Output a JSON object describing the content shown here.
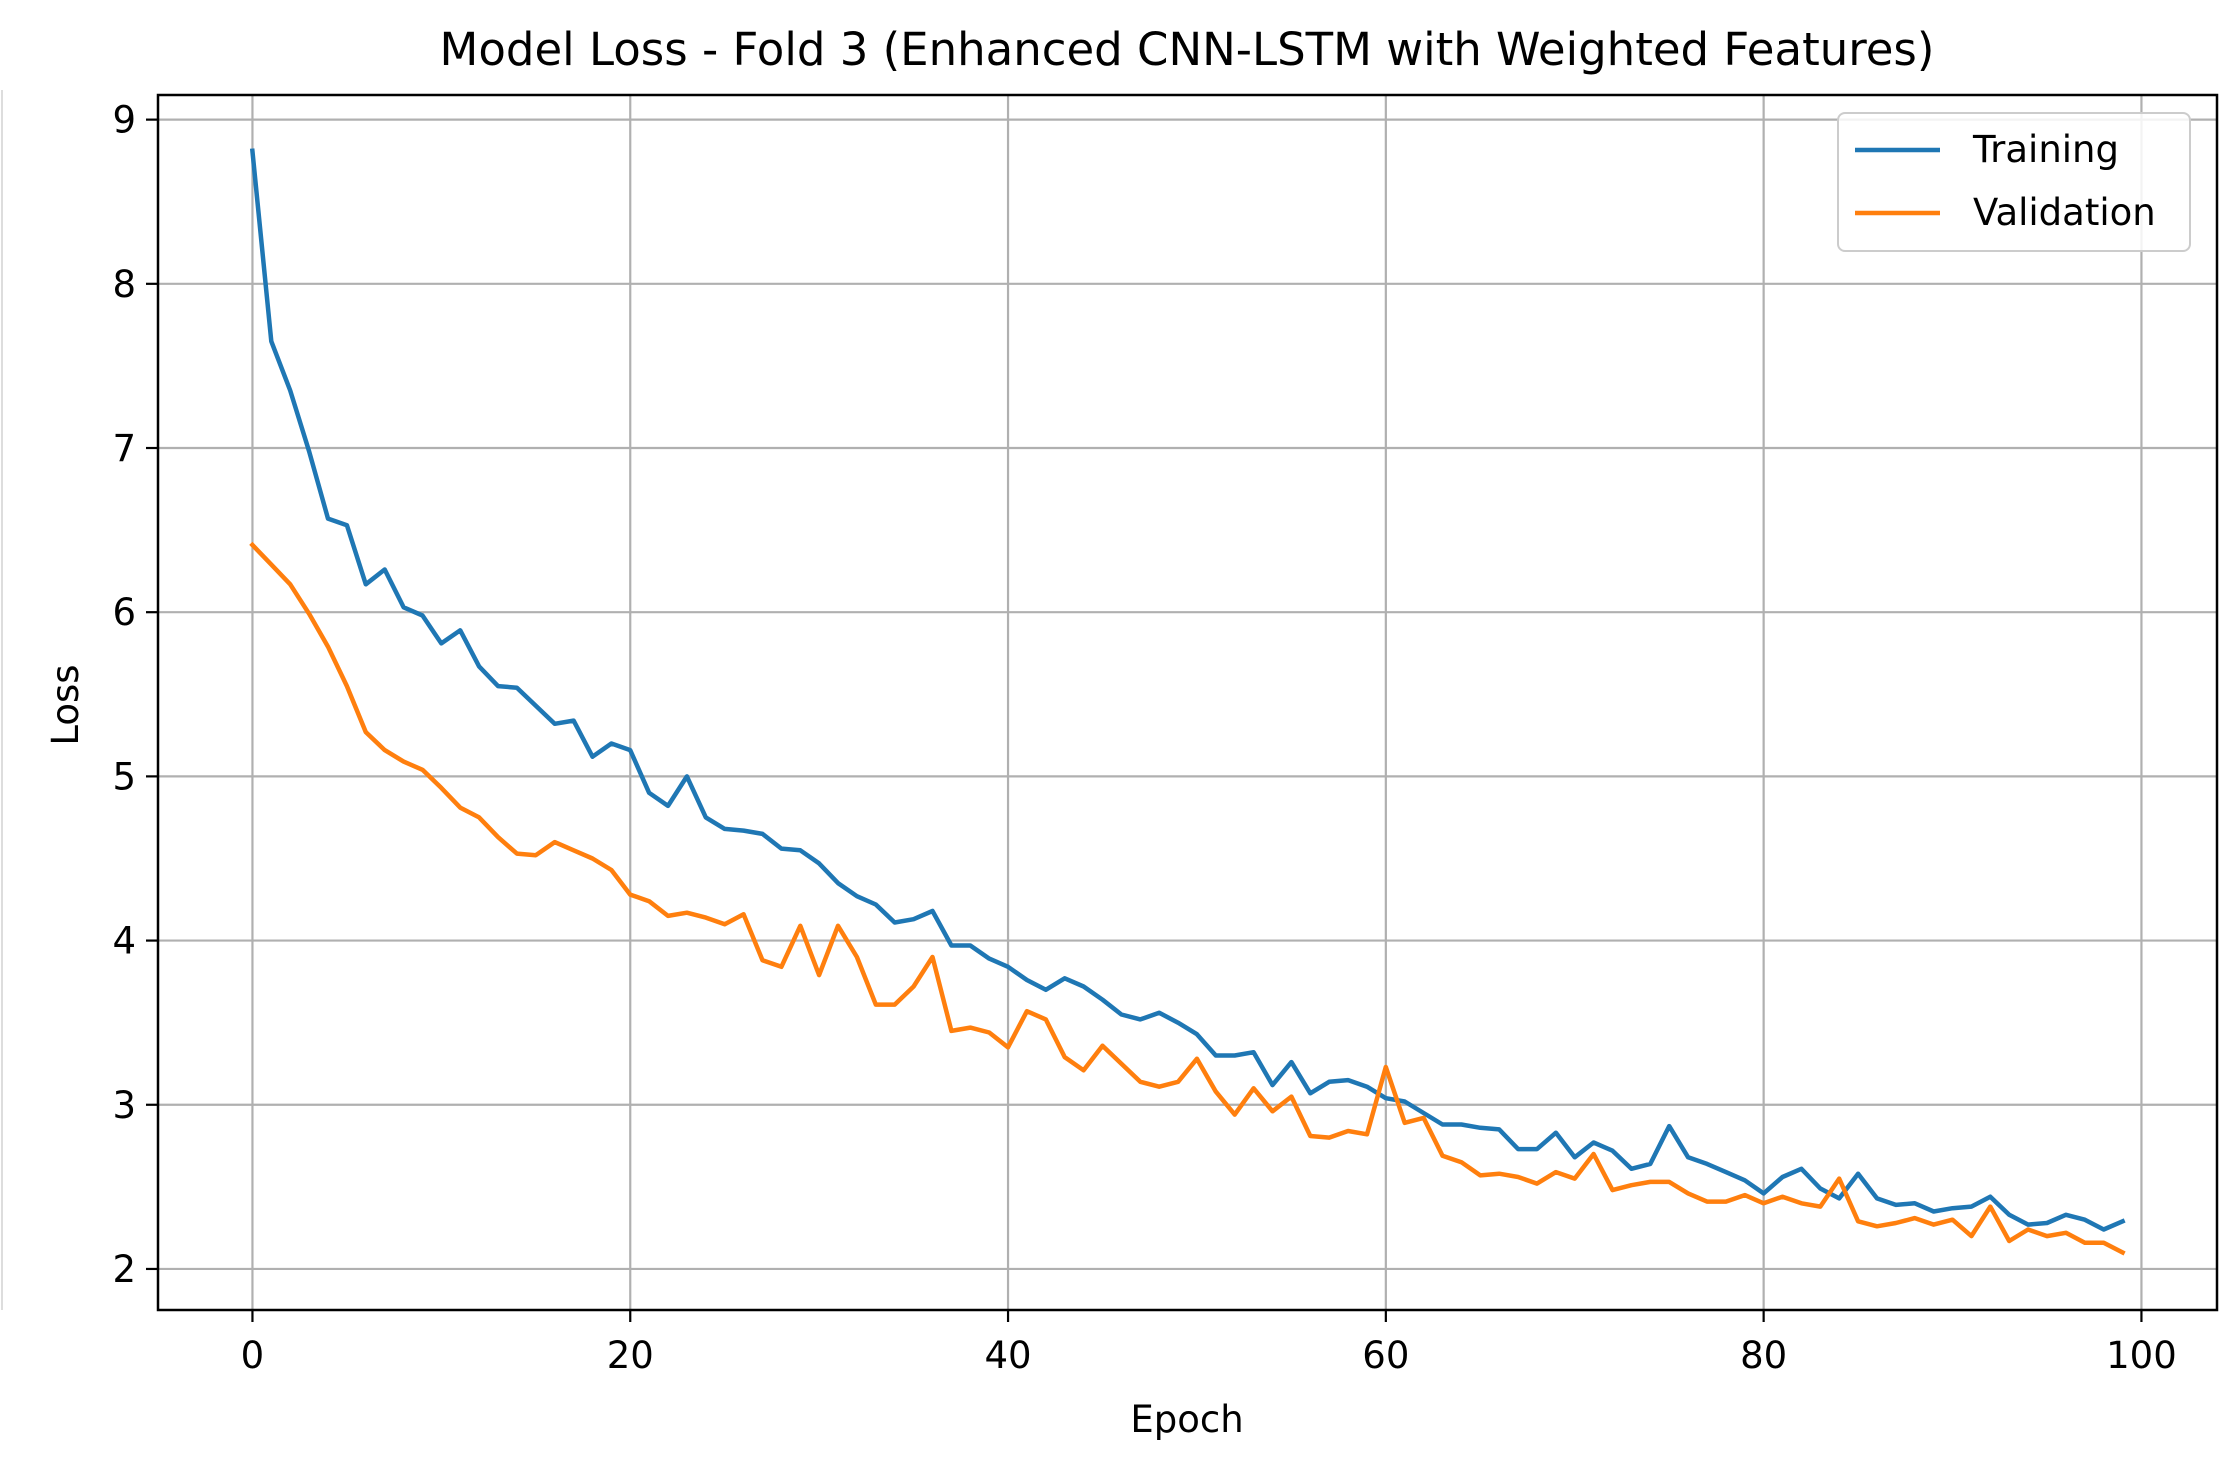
{
  "chart_data": {
    "type": "line",
    "title": "Model Loss - Fold 3 (Enhanced CNN-LSTM with Weighted Features)",
    "xlabel": "Epoch",
    "ylabel": "Loss",
    "xlim": [
      -5,
      104
    ],
    "ylim": [
      1.75,
      9.15
    ],
    "xticks": [
      0,
      20,
      40,
      60,
      80,
      100
    ],
    "yticks": [
      2,
      3,
      4,
      5,
      6,
      7,
      8,
      9
    ],
    "xtick_labels": [
      "0",
      "20",
      "40",
      "60",
      "80",
      "100"
    ],
    "ytick_labels": [
      "2",
      "3",
      "4",
      "5",
      "6",
      "7",
      "8",
      "9"
    ],
    "grid": true,
    "legend_position": "upper right",
    "x": [
      0,
      1,
      2,
      3,
      4,
      5,
      6,
      7,
      8,
      9,
      10,
      11,
      12,
      13,
      14,
      15,
      16,
      17,
      18,
      19,
      20,
      21,
      22,
      23,
      24,
      25,
      26,
      27,
      28,
      29,
      30,
      31,
      32,
      33,
      34,
      35,
      36,
      37,
      38,
      39,
      40,
      41,
      42,
      43,
      44,
      45,
      46,
      47,
      48,
      49,
      50,
      51,
      52,
      53,
      54,
      55,
      56,
      57,
      58,
      59,
      60,
      61,
      62,
      63,
      64,
      65,
      66,
      67,
      68,
      69,
      70,
      71,
      72,
      73,
      74,
      75,
      76,
      77,
      78,
      79,
      80,
      81,
      82,
      83,
      84,
      85,
      86,
      87,
      88,
      89,
      90,
      91,
      92,
      93,
      94,
      95,
      96,
      97,
      98,
      99
    ],
    "series": [
      {
        "name": "Training",
        "color": "#1f77b4",
        "values": [
          8.81,
          7.65,
          7.35,
          6.98,
          6.57,
          6.53,
          6.17,
          6.26,
          6.03,
          5.98,
          5.81,
          5.89,
          5.67,
          5.55,
          5.54,
          5.43,
          5.32,
          5.34,
          5.12,
          5.2,
          5.16,
          4.9,
          4.82,
          5.0,
          4.75,
          4.68,
          4.67,
          4.65,
          4.56,
          4.55,
          4.47,
          4.35,
          4.27,
          4.22,
          4.11,
          4.13,
          4.18,
          3.97,
          3.97,
          3.89,
          3.84,
          3.76,
          3.7,
          3.77,
          3.72,
          3.64,
          3.55,
          3.52,
          3.56,
          3.5,
          3.43,
          3.3,
          3.3,
          3.32,
          3.12,
          3.26,
          3.07,
          3.14,
          3.15,
          3.11,
          3.04,
          3.02,
          2.95,
          2.88,
          2.88,
          2.86,
          2.85,
          2.73,
          2.73,
          2.83,
          2.68,
          2.77,
          2.72,
          2.61,
          2.64,
          2.87,
          2.68,
          2.64,
          2.59,
          2.54,
          2.46,
          2.56,
          2.61,
          2.49,
          2.43,
          2.58,
          2.43,
          2.39,
          2.4,
          2.35,
          2.37,
          2.38,
          2.44,
          2.33,
          2.27,
          2.28,
          2.33,
          2.3,
          2.24,
          2.29
        ]
      },
      {
        "name": "Validation",
        "color": "#ff7f0e",
        "values": [
          6.41,
          6.29,
          6.17,
          5.99,
          5.79,
          5.55,
          5.27,
          5.16,
          5.09,
          5.04,
          4.93,
          4.81,
          4.75,
          4.63,
          4.53,
          4.52,
          4.6,
          4.55,
          4.5,
          4.43,
          4.28,
          4.24,
          4.15,
          4.17,
          4.14,
          4.1,
          4.16,
          3.88,
          3.84,
          4.09,
          3.79,
          4.09,
          3.9,
          3.61,
          3.61,
          3.72,
          3.9,
          3.45,
          3.47,
          3.44,
          3.35,
          3.57,
          3.52,
          3.29,
          3.21,
          3.36,
          3.25,
          3.14,
          3.11,
          3.14,
          3.28,
          3.08,
          2.94,
          3.1,
          2.96,
          3.05,
          2.81,
          2.8,
          2.84,
          2.82,
          3.23,
          2.89,
          2.92,
          2.69,
          2.65,
          2.57,
          2.58,
          2.56,
          2.52,
          2.59,
          2.55,
          2.7,
          2.48,
          2.51,
          2.53,
          2.53,
          2.46,
          2.41,
          2.41,
          2.45,
          2.4,
          2.44,
          2.4,
          2.38,
          2.55,
          2.29,
          2.26,
          2.28,
          2.31,
          2.27,
          2.3,
          2.2,
          2.38,
          2.17,
          2.24,
          2.2,
          2.22,
          2.16,
          2.16,
          2.1
        ]
      }
    ]
  }
}
